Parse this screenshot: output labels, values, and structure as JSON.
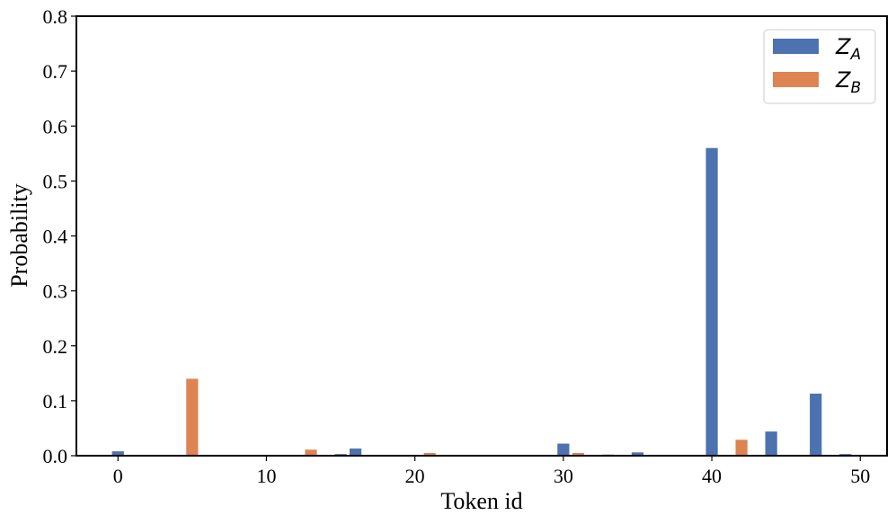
{
  "chart_data": {
    "type": "bar",
    "xlabel": "Token id",
    "ylabel": "Probability",
    "xlim": [
      -2.8,
      51.8
    ],
    "ylim": [
      0,
      0.8
    ],
    "xticks": [
      0,
      10,
      20,
      30,
      40,
      50
    ],
    "yticks": [
      {
        "value": 0,
        "label": "0.0"
      },
      0.1,
      0.2,
      0.3,
      0.4,
      0.5,
      0.6,
      0.7,
      0.8
    ],
    "legend": "upper right",
    "series": [
      {
        "name": "Z_A",
        "color": "#4c72b0",
        "x": [
          0,
          15,
          16,
          30,
          33,
          35,
          40,
          44,
          47,
          49
        ],
        "values": [
          0.008,
          0.003,
          0.013,
          0.022,
          0.002,
          0.006,
          0.56,
          0.044,
          0.113,
          0.003
        ]
      },
      {
        "name": "Z_B",
        "color": "#dd8452",
        "x": [
          5,
          13,
          21,
          31,
          34,
          42
        ],
        "values": [
          0.14,
          0.011,
          0.005,
          0.005,
          0.001,
          0.029
        ]
      }
    ]
  }
}
